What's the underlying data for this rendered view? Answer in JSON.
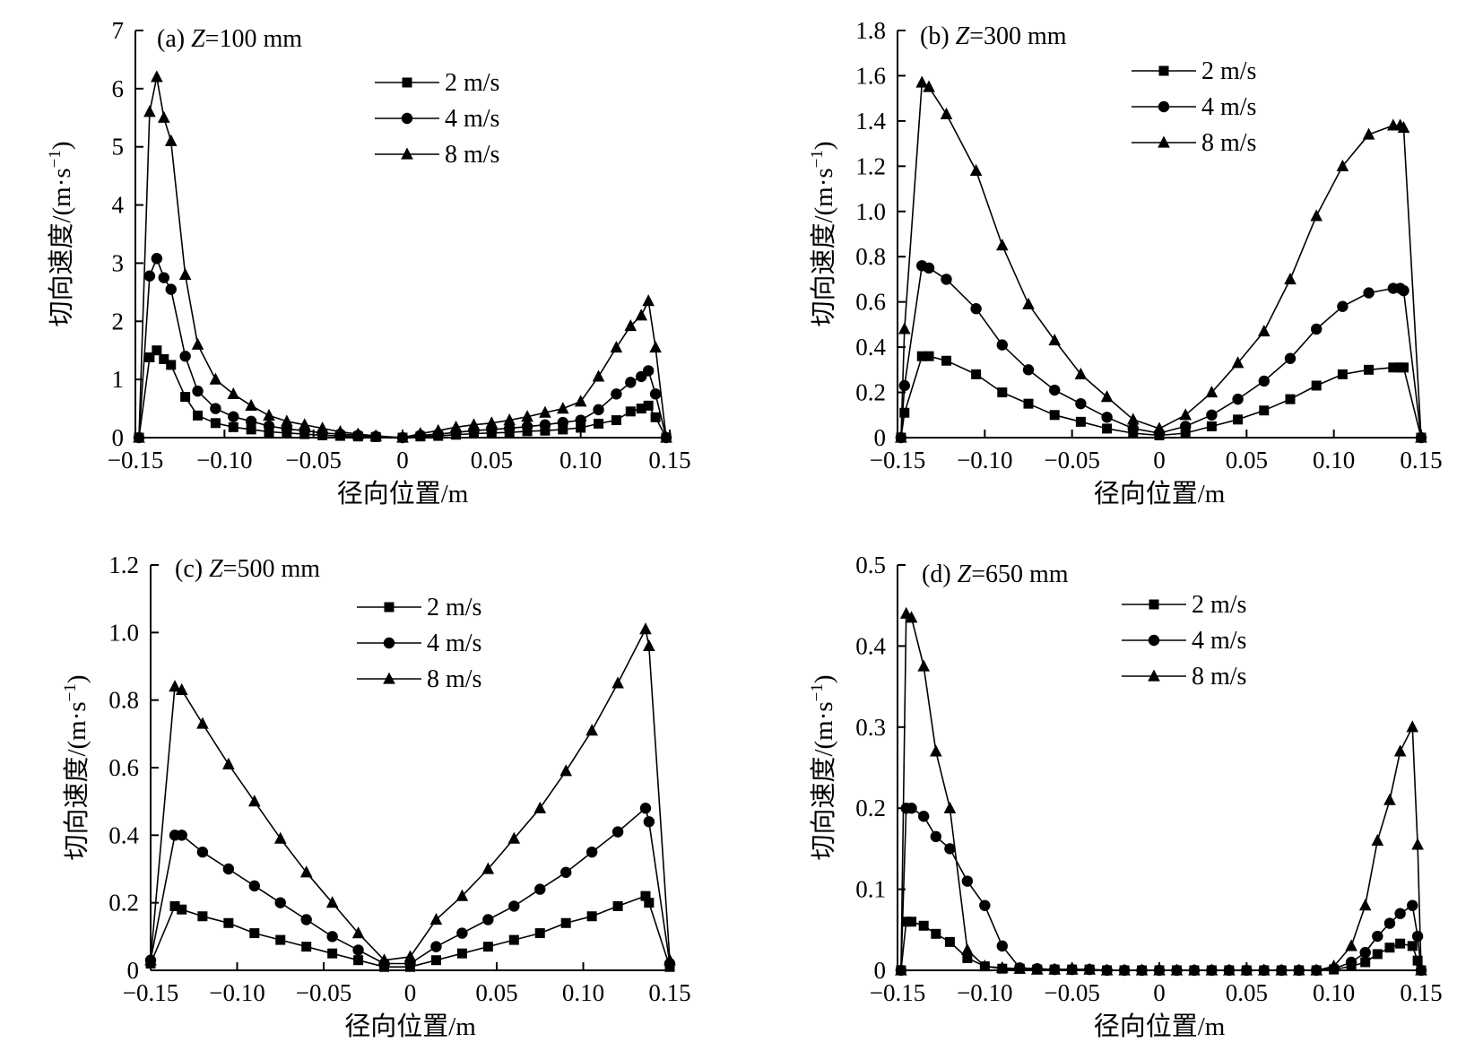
{
  "chart_data": [
    {
      "type": "line",
      "panel": "(a)",
      "title_var": "Z",
      "title_rest": "=100 mm",
      "xlabel": "径向位置/m",
      "ylabel_prefix": "切向速度/(m·s",
      "ylabel_sup": "−1",
      "ylabel_suffix": ")",
      "xlim": [
        -0.15,
        0.15
      ],
      "ylim": [
        0,
        7
      ],
      "xticks": [
        -0.15,
        -0.1,
        -0.05,
        0,
        0.05,
        0.1,
        0.15
      ],
      "xtick_labels": [
        "−0.15",
        "−0.10",
        "−0.05",
        "0",
        "0.05",
        "0.10",
        "0.15"
      ],
      "yticks": [
        0,
        1,
        2,
        3,
        4,
        5,
        6,
        7
      ],
      "ytick_labels": [
        "0",
        "1",
        "2",
        "3",
        "4",
        "5",
        "6",
        "7"
      ],
      "legend": "top-center",
      "grid": false,
      "series": [
        {
          "name": "2 m/s",
          "marker": "square",
          "x": [
            -0.148,
            -0.142,
            -0.138,
            -0.134,
            -0.13,
            -0.122,
            -0.115,
            -0.105,
            -0.095,
            -0.085,
            -0.075,
            -0.065,
            -0.055,
            -0.045,
            -0.035,
            -0.025,
            -0.015,
            0,
            0.01,
            0.02,
            0.03,
            0.04,
            0.05,
            0.06,
            0.07,
            0.08,
            0.09,
            0.1,
            0.11,
            0.12,
            0.128,
            0.134,
            0.138,
            0.142,
            0.148
          ],
          "y": [
            0,
            1.38,
            1.5,
            1.35,
            1.25,
            0.7,
            0.38,
            0.25,
            0.18,
            0.14,
            0.1,
            0.08,
            0.06,
            0.04,
            0.03,
            0.02,
            0.01,
            0,
            0.02,
            0.03,
            0.05,
            0.07,
            0.08,
            0.09,
            0.11,
            0.12,
            0.14,
            0.17,
            0.24,
            0.3,
            0.45,
            0.5,
            0.55,
            0.35,
            0
          ]
        },
        {
          "name": "4 m/s",
          "marker": "circle",
          "x": [
            -0.148,
            -0.142,
            -0.138,
            -0.134,
            -0.13,
            -0.122,
            -0.115,
            -0.105,
            -0.095,
            -0.085,
            -0.075,
            -0.065,
            -0.055,
            -0.045,
            -0.035,
            -0.025,
            -0.015,
            0,
            0.01,
            0.02,
            0.03,
            0.04,
            0.05,
            0.06,
            0.07,
            0.08,
            0.09,
            0.1,
            0.11,
            0.12,
            0.128,
            0.134,
            0.138,
            0.142,
            0.148
          ],
          "y": [
            0,
            2.78,
            3.08,
            2.75,
            2.55,
            1.4,
            0.8,
            0.5,
            0.36,
            0.28,
            0.2,
            0.15,
            0.12,
            0.08,
            0.06,
            0.04,
            0.02,
            0,
            0.04,
            0.06,
            0.09,
            0.12,
            0.14,
            0.16,
            0.19,
            0.22,
            0.26,
            0.3,
            0.48,
            0.75,
            0.95,
            1.05,
            1.15,
            0.75,
            0
          ]
        },
        {
          "name": "8 m/s",
          "marker": "triangle",
          "x": [
            -0.148,
            -0.142,
            -0.138,
            -0.134,
            -0.13,
            -0.122,
            -0.115,
            -0.105,
            -0.095,
            -0.085,
            -0.075,
            -0.065,
            -0.055,
            -0.045,
            -0.035,
            -0.025,
            -0.015,
            0,
            0.01,
            0.02,
            0.03,
            0.04,
            0.05,
            0.06,
            0.07,
            0.08,
            0.09,
            0.1,
            0.11,
            0.12,
            0.128,
            0.134,
            0.138,
            0.142,
            0.148
          ],
          "y": [
            0,
            5.6,
            6.2,
            5.5,
            5.1,
            2.8,
            1.6,
            1.0,
            0.75,
            0.55,
            0.38,
            0.28,
            0.22,
            0.16,
            0.1,
            0.06,
            0.03,
            0,
            0.07,
            0.12,
            0.18,
            0.22,
            0.25,
            0.3,
            0.36,
            0.43,
            0.5,
            0.62,
            1.05,
            1.55,
            1.92,
            2.1,
            2.35,
            1.55,
            0
          ]
        }
      ]
    },
    {
      "type": "line",
      "panel": "(b)",
      "title_var": "Z",
      "title_rest": "=300 mm",
      "xlabel": "径向位置/m",
      "ylabel_prefix": "切向速度/(m·s",
      "ylabel_sup": "−1",
      "ylabel_suffix": ")",
      "xlim": [
        -0.15,
        0.15
      ],
      "ylim": [
        0,
        1.8
      ],
      "xticks": [
        -0.15,
        -0.1,
        -0.05,
        0,
        0.05,
        0.1,
        0.15
      ],
      "xtick_labels": [
        "−0.15",
        "−0.10",
        "−0.05",
        "0",
        "0.05",
        "0.10",
        "0.15"
      ],
      "yticks": [
        0,
        0.2,
        0.4,
        0.6,
        0.8,
        1.0,
        1.2,
        1.4,
        1.6,
        1.8
      ],
      "ytick_labels": [
        "0",
        "0.2",
        "0.4",
        "0.6",
        "0.8",
        "1.0",
        "1.2",
        "1.4",
        "1.6",
        "1.8"
      ],
      "legend": "top-right",
      "grid": false,
      "series": [
        {
          "name": "2 m/s",
          "marker": "square",
          "x": [
            -0.148,
            -0.146,
            -0.136,
            -0.132,
            -0.122,
            -0.105,
            -0.09,
            -0.075,
            -0.06,
            -0.045,
            -0.03,
            -0.015,
            0,
            0.015,
            0.03,
            0.045,
            0.06,
            0.075,
            0.09,
            0.105,
            0.12,
            0.134,
            0.138,
            0.14,
            0.15
          ],
          "y": [
            0,
            0.11,
            0.36,
            0.36,
            0.34,
            0.28,
            0.2,
            0.15,
            0.1,
            0.07,
            0.04,
            0.02,
            0.01,
            0.02,
            0.05,
            0.08,
            0.12,
            0.17,
            0.23,
            0.28,
            0.3,
            0.31,
            0.31,
            0.31,
            0
          ]
        },
        {
          "name": "4 m/s",
          "marker": "circle",
          "x": [
            -0.148,
            -0.146,
            -0.136,
            -0.132,
            -0.122,
            -0.105,
            -0.09,
            -0.075,
            -0.06,
            -0.045,
            -0.03,
            -0.015,
            0,
            0.015,
            0.03,
            0.045,
            0.06,
            0.075,
            0.09,
            0.105,
            0.12,
            0.134,
            0.138,
            0.14,
            0.15
          ],
          "y": [
            0,
            0.23,
            0.76,
            0.75,
            0.7,
            0.57,
            0.41,
            0.3,
            0.21,
            0.15,
            0.09,
            0.04,
            0.02,
            0.05,
            0.1,
            0.17,
            0.25,
            0.35,
            0.48,
            0.58,
            0.64,
            0.66,
            0.66,
            0.65,
            0
          ]
        },
        {
          "name": "8 m/s",
          "marker": "triangle",
          "x": [
            -0.148,
            -0.146,
            -0.136,
            -0.132,
            -0.122,
            -0.105,
            -0.09,
            -0.075,
            -0.06,
            -0.045,
            -0.03,
            -0.015,
            0,
            0.015,
            0.03,
            0.045,
            0.06,
            0.075,
            0.09,
            0.105,
            0.12,
            0.134,
            0.138,
            0.14,
            0.15
          ],
          "y": [
            0,
            0.48,
            1.57,
            1.55,
            1.43,
            1.18,
            0.85,
            0.59,
            0.43,
            0.28,
            0.18,
            0.08,
            0.04,
            0.1,
            0.2,
            0.33,
            0.47,
            0.7,
            0.98,
            1.2,
            1.34,
            1.38,
            1.38,
            1.37,
            0
          ]
        }
      ]
    },
    {
      "type": "line",
      "panel": "(c)",
      "title_var": "Z",
      "title_rest": "=500 mm",
      "xlabel": "径向位置/m",
      "ylabel_prefix": "切向速度/(m·s",
      "ylabel_sup": "−1",
      "ylabel_suffix": ")",
      "xlim": [
        -0.15,
        0.15
      ],
      "ylim": [
        0,
        1.2
      ],
      "xticks": [
        -0.15,
        -0.1,
        -0.05,
        0,
        0.05,
        0.1,
        0.15
      ],
      "xtick_labels": [
        "−0.15",
        "−0.10",
        "−0.05",
        "0",
        "0.05",
        "0.10",
        "0.15"
      ],
      "yticks": [
        0,
        0.2,
        0.4,
        0.6,
        0.8,
        1.0,
        1.2
      ],
      "ytick_labels": [
        "0",
        "0.2",
        "0.4",
        "0.6",
        "0.8",
        "1.0",
        "1.2"
      ],
      "legend": "top-center",
      "grid": false,
      "series": [
        {
          "name": "2 m/s",
          "marker": "square",
          "x": [
            -0.15,
            -0.136,
            -0.132,
            -0.12,
            -0.105,
            -0.09,
            -0.075,
            -0.06,
            -0.045,
            -0.03,
            -0.015,
            0,
            0.015,
            0.03,
            0.045,
            0.06,
            0.075,
            0.09,
            0.105,
            0.12,
            0.136,
            0.138,
            0.15
          ],
          "y": [
            0.02,
            0.19,
            0.18,
            0.16,
            0.14,
            0.11,
            0.09,
            0.07,
            0.05,
            0.03,
            0.01,
            0.01,
            0.03,
            0.05,
            0.07,
            0.09,
            0.11,
            0.14,
            0.16,
            0.19,
            0.22,
            0.2,
            0.01
          ]
        },
        {
          "name": "4 m/s",
          "marker": "circle",
          "x": [
            -0.15,
            -0.136,
            -0.132,
            -0.12,
            -0.105,
            -0.09,
            -0.075,
            -0.06,
            -0.045,
            -0.03,
            -0.015,
            0,
            0.015,
            0.03,
            0.045,
            0.06,
            0.075,
            0.09,
            0.105,
            0.12,
            0.136,
            0.138,
            0.15
          ],
          "y": [
            0.03,
            0.4,
            0.4,
            0.35,
            0.3,
            0.25,
            0.2,
            0.15,
            0.1,
            0.06,
            0.02,
            0.02,
            0.07,
            0.11,
            0.15,
            0.19,
            0.24,
            0.29,
            0.35,
            0.41,
            0.48,
            0.44,
            0.02
          ]
        },
        {
          "name": "8 m/s",
          "marker": "triangle",
          "x": [
            -0.15,
            -0.136,
            -0.132,
            -0.12,
            -0.105,
            -0.09,
            -0.075,
            -0.06,
            -0.045,
            -0.03,
            -0.015,
            0,
            0.015,
            0.03,
            0.045,
            0.06,
            0.075,
            0.09,
            0.105,
            0.12,
            0.136,
            0.138,
            0.15
          ],
          "y": [
            0.03,
            0.84,
            0.83,
            0.73,
            0.61,
            0.5,
            0.39,
            0.29,
            0.2,
            0.11,
            0.03,
            0.04,
            0.15,
            0.22,
            0.3,
            0.39,
            0.48,
            0.59,
            0.71,
            0.85,
            1.01,
            0.96,
            0.03
          ]
        }
      ]
    },
    {
      "type": "line",
      "panel": "(d)",
      "title_var": "Z",
      "title_rest": "=650 mm",
      "xlabel": "径向位置/m",
      "ylabel_prefix": "切向速度/(m·s",
      "ylabel_sup": "−1",
      "ylabel_suffix": ")",
      "xlim": [
        -0.15,
        0.15
      ],
      "ylim": [
        0,
        0.5
      ],
      "xticks": [
        -0.15,
        -0.1,
        -0.05,
        0,
        0.05,
        0.1,
        0.15
      ],
      "xtick_labels": [
        "−0.15",
        "−0.10",
        "−0.05",
        "0",
        "0.05",
        "0.10",
        "0.15"
      ],
      "yticks": [
        0,
        0.1,
        0.2,
        0.3,
        0.4,
        0.5
      ],
      "ytick_labels": [
        "0",
        "0.1",
        "0.2",
        "0.3",
        "0.4",
        "0.5"
      ],
      "legend": "top-center",
      "grid": false,
      "series": [
        {
          "name": "2 m/s",
          "marker": "square",
          "x": [
            -0.148,
            -0.145,
            -0.142,
            -0.135,
            -0.128,
            -0.12,
            -0.11,
            -0.1,
            -0.09,
            -0.08,
            -0.07,
            -0.06,
            -0.05,
            -0.04,
            -0.03,
            -0.02,
            -0.01,
            0,
            0.01,
            0.02,
            0.03,
            0.04,
            0.05,
            0.06,
            0.07,
            0.08,
            0.09,
            0.1,
            0.11,
            0.118,
            0.125,
            0.132,
            0.138,
            0.145,
            0.148,
            0.15
          ],
          "y": [
            0,
            0.06,
            0.06,
            0.055,
            0.045,
            0.035,
            0.015,
            0.005,
            0.002,
            0.002,
            0.001,
            0.001,
            0.001,
            0.001,
            0,
            0,
            0,
            0,
            0,
            0,
            0,
            0,
            0,
            0,
            0,
            0,
            0,
            0.001,
            0.005,
            0.01,
            0.02,
            0.028,
            0.033,
            0.03,
            0.012,
            0
          ]
        },
        {
          "name": "4 m/s",
          "marker": "circle",
          "x": [
            -0.148,
            -0.145,
            -0.142,
            -0.135,
            -0.128,
            -0.12,
            -0.11,
            -0.1,
            -0.09,
            -0.08,
            -0.07,
            -0.06,
            -0.05,
            -0.04,
            -0.03,
            -0.02,
            -0.01,
            0,
            0.01,
            0.02,
            0.03,
            0.04,
            0.05,
            0.06,
            0.07,
            0.08,
            0.09,
            0.1,
            0.11,
            0.118,
            0.125,
            0.132,
            0.138,
            0.145,
            0.148,
            0.15
          ],
          "y": [
            0,
            0.2,
            0.2,
            0.19,
            0.165,
            0.15,
            0.11,
            0.08,
            0.03,
            0.003,
            0.002,
            0.001,
            0.001,
            0.001,
            0,
            0,
            0,
            0,
            0,
            0,
            0,
            0,
            0,
            0,
            0,
            0,
            0,
            0.002,
            0.01,
            0.022,
            0.042,
            0.058,
            0.07,
            0.08,
            0.042,
            0
          ]
        },
        {
          "name": "8 m/s",
          "marker": "triangle",
          "x": [
            -0.148,
            -0.145,
            -0.142,
            -0.135,
            -0.128,
            -0.12,
            -0.11,
            -0.1,
            -0.09,
            -0.08,
            -0.07,
            -0.06,
            -0.05,
            -0.04,
            -0.03,
            -0.02,
            -0.01,
            0,
            0.01,
            0.02,
            0.03,
            0.04,
            0.05,
            0.06,
            0.07,
            0.08,
            0.09,
            0.1,
            0.11,
            0.118,
            0.125,
            0.132,
            0.138,
            0.145,
            0.148,
            0.15
          ],
          "y": [
            0,
            0.44,
            0.435,
            0.375,
            0.27,
            0.2,
            0.025,
            0.005,
            0.003,
            0.002,
            0.001,
            0.001,
            0.001,
            0.001,
            0,
            0,
            0,
            0,
            0,
            0,
            0,
            0,
            0,
            0,
            0,
            0,
            0,
            0.005,
            0.03,
            0.08,
            0.16,
            0.21,
            0.27,
            0.3,
            0.155,
            0
          ]
        }
      ]
    }
  ]
}
